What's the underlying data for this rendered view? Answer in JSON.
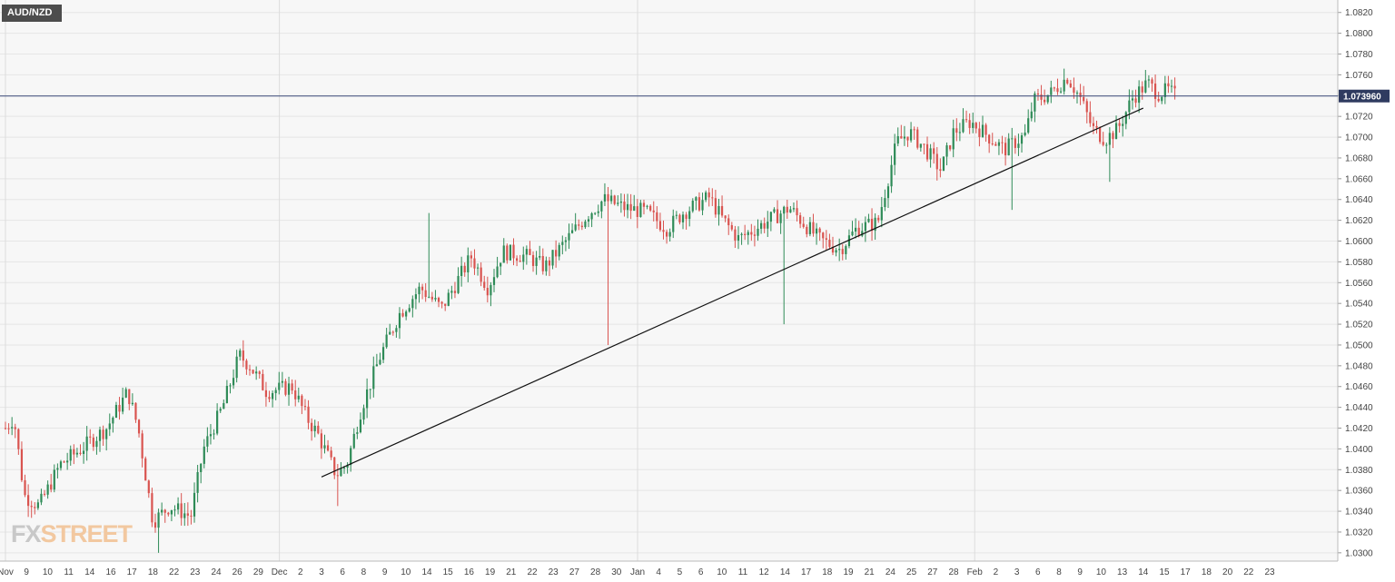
{
  "chart_data": {
    "type": "candlestick",
    "symbol": "AUD/NZD",
    "current_price": "1.073960",
    "colors": {
      "up": "#2e8b57",
      "down": "#d9534f",
      "price_line": "#3b4a7a",
      "price_label_bg": "#2f3b60",
      "trendline": "#111111",
      "grid": "#e6e6e6",
      "plot_bg": "#f7f7f7"
    },
    "y_axis": {
      "min": 1.0292,
      "max": 1.0832,
      "ticks": [
        "1.0300",
        "1.0320",
        "1.0340",
        "1.0360",
        "1.0380",
        "1.0400",
        "1.0420",
        "1.0440",
        "1.0460",
        "1.0480",
        "1.0500",
        "1.0520",
        "1.0540",
        "1.0560",
        "1.0580",
        "1.0600",
        "1.0620",
        "1.0640",
        "1.0660",
        "1.0680",
        "1.0700",
        "1.0720",
        "1.0740",
        "1.0760",
        "1.0780",
        "1.0800",
        "1.0820"
      ]
    },
    "x_axis": {
      "labels": [
        "Nov",
        "9",
        "10",
        "11",
        "14",
        "16",
        "17",
        "18",
        "22",
        "23",
        "24",
        "26",
        "29",
        "Dec",
        "2",
        "3",
        "6",
        "8",
        "9",
        "10",
        "14",
        "15",
        "16",
        "19",
        "21",
        "22",
        "23",
        "27",
        "28",
        "30",
        "Jan",
        "4",
        "5",
        "6",
        "10",
        "11",
        "12",
        "14",
        "17",
        "18",
        "19",
        "21",
        "24",
        "25",
        "27",
        "28",
        "Feb",
        "2",
        "3",
        "6",
        "8",
        "9",
        "10",
        "13",
        "14",
        "15",
        "17",
        "18",
        "20",
        "22",
        "23"
      ]
    },
    "trendline": {
      "from": {
        "x": "Dec 3",
        "y": 1.0373
      },
      "to": {
        "x": "Feb 14",
        "y": 1.0728
      }
    },
    "path": [
      [
        0,
        1.042
      ],
      [
        0.4,
        1.043
      ],
      [
        0.9,
        1.0355
      ],
      [
        1.6,
        1.0345
      ],
      [
        2.6,
        1.0385
      ],
      [
        3.6,
        1.04
      ],
      [
        4.8,
        1.042
      ],
      [
        5.8,
        1.0455
      ],
      [
        6.3,
        1.042
      ],
      [
        7.0,
        1.033
      ],
      [
        7.8,
        1.0345
      ],
      [
        8.8,
        1.0335
      ],
      [
        9.4,
        1.04
      ],
      [
        10.3,
        1.044
      ],
      [
        11.1,
        1.049
      ],
      [
        11.6,
        1.048
      ],
      [
        12.4,
        1.0455
      ],
      [
        13.6,
        1.046
      ],
      [
        14.3,
        1.043
      ],
      [
        14.8,
        1.0415
      ],
      [
        15.7,
        1.0375
      ],
      [
        16.2,
        1.0385
      ],
      [
        16.9,
        1.044
      ],
      [
        17.8,
        1.049
      ],
      [
        18.7,
        1.053
      ],
      [
        19.7,
        1.0555
      ],
      [
        20.7,
        1.0535
      ],
      [
        22.1,
        1.0585
      ],
      [
        22.9,
        1.0555
      ],
      [
        23.6,
        1.059
      ],
      [
        24.8,
        1.0585
      ],
      [
        25.6,
        1.0575
      ],
      [
        26.6,
        1.06
      ],
      [
        27.6,
        1.0625
      ],
      [
        28.4,
        1.064
      ],
      [
        29.4,
        1.0632
      ],
      [
        30.4,
        1.0628
      ],
      [
        31.4,
        1.0612
      ],
      [
        32.2,
        1.0628
      ],
      [
        33.4,
        1.0642
      ],
      [
        34.0,
        1.0622
      ],
      [
        34.8,
        1.0602
      ],
      [
        35.6,
        1.0612
      ],
      [
        36.4,
        1.0622
      ],
      [
        37.2,
        1.0632
      ],
      [
        37.9,
        1.0617
      ],
      [
        38.6,
        1.0602
      ],
      [
        39.6,
        1.0592
      ],
      [
        40.4,
        1.0612
      ],
      [
        41.4,
        1.0618
      ],
      [
        42.3,
        1.0695
      ],
      [
        42.9,
        1.0705
      ],
      [
        43.6,
        1.069
      ],
      [
        44.4,
        1.0668
      ],
      [
        45.0,
        1.0705
      ],
      [
        45.8,
        1.0715
      ],
      [
        46.7,
        1.07
      ],
      [
        47.4,
        1.0688
      ],
      [
        48.4,
        1.0702
      ],
      [
        48.8,
        1.0735
      ],
      [
        49.6,
        1.0742
      ],
      [
        50.4,
        1.0758
      ],
      [
        51.0,
        1.0738
      ],
      [
        51.6,
        1.0708
      ],
      [
        52.2,
        1.0698
      ],
      [
        52.8,
        1.0708
      ],
      [
        53.5,
        1.0738
      ],
      [
        54.2,
        1.0752
      ],
      [
        54.7,
        1.0742
      ],
      [
        55.2,
        1.0745
      ],
      [
        55.5,
        1.074
      ]
    ],
    "spikes": [
      [
        20.1,
        1.0627
      ],
      [
        28.6,
        1.05
      ],
      [
        37.0,
        1.052
      ],
      [
        7.3,
        1.03
      ],
      [
        15.8,
        1.0345
      ],
      [
        47.8,
        1.063
      ],
      [
        52.4,
        1.0657
      ]
    ]
  },
  "logo": {
    "part1": "FX",
    "part2": "STREET"
  }
}
